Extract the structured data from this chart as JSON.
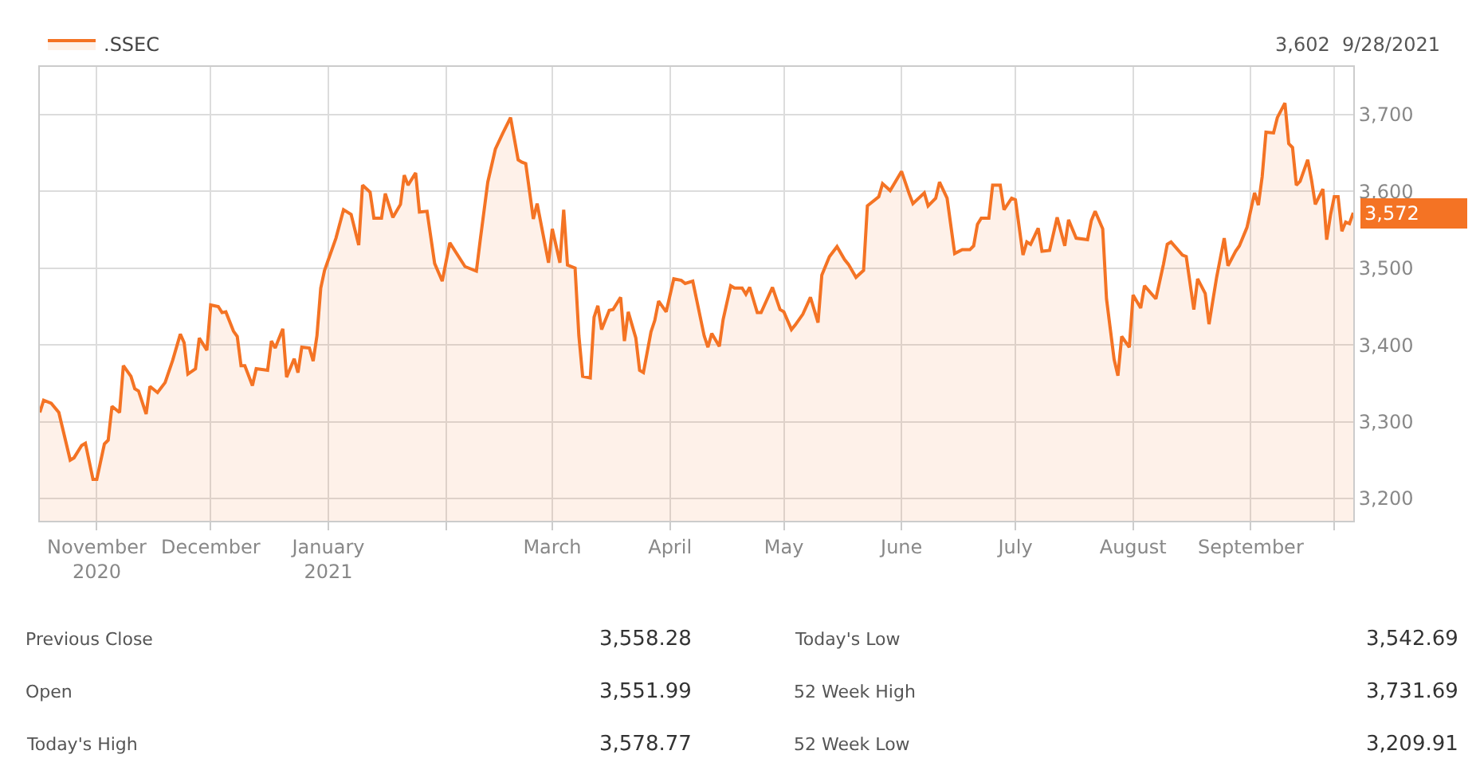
{
  "chart_data": {
    "type": "area",
    "legend": "top left",
    "grid": true,
    "marker": "none",
    "line_style": "solid",
    "x": [
      "2020-10-17",
      "2020-10-18",
      "2020-10-20",
      "2020-10-22",
      "2020-10-25",
      "2020-10-26",
      "2020-10-28",
      "2020-10-29",
      "2020-10-31",
      "2020-11-01",
      "2020-11-03",
      "2020-11-04",
      "2020-11-05",
      "2020-11-07",
      "2020-11-08",
      "2020-11-10",
      "2020-11-11",
      "2020-11-12",
      "2020-11-14",
      "2020-11-15",
      "2020-11-17",
      "2020-11-19",
      "2020-11-21",
      "2020-11-23",
      "2020-11-24",
      "2020-11-25",
      "2020-11-27",
      "2020-11-28",
      "2020-11-30",
      "2020-12-01",
      "2020-12-03",
      "2020-12-04",
      "2020-12-05",
      "2020-12-07",
      "2020-12-08",
      "2020-12-09",
      "2020-12-10",
      "2020-12-12",
      "2020-12-13",
      "2020-12-16",
      "2020-12-17",
      "2020-12-18",
      "2020-12-20",
      "2020-12-21",
      "2020-12-23",
      "2020-12-24",
      "2020-12-25",
      "2020-12-27",
      "2020-12-28",
      "2020-12-29",
      "2020-12-30",
      "2020-12-31",
      "2021-01-03",
      "2021-01-05",
      "2021-01-07",
      "2021-01-09",
      "2021-01-10",
      "2021-01-12",
      "2021-01-13",
      "2021-01-15",
      "2021-01-16",
      "2021-01-18",
      "2021-01-20",
      "2021-01-21",
      "2021-01-22",
      "2021-01-24",
      "2021-01-25",
      "2021-01-27",
      "2021-01-29",
      "2021-01-31",
      "2021-02-02",
      "2021-02-06",
      "2021-02-09",
      "2021-02-10",
      "2021-02-12",
      "2021-02-14",
      "2021-02-16",
      "2021-02-18",
      "2021-02-20",
      "2021-02-21",
      "2021-02-22",
      "2021-02-24",
      "2021-02-25",
      "2021-02-28",
      "2021-03-01",
      "2021-03-03",
      "2021-03-04",
      "2021-03-05",
      "2021-03-07",
      "2021-03-08",
      "2021-03-09",
      "2021-03-11",
      "2021-03-12",
      "2021-03-13",
      "2021-03-14",
      "2021-03-16",
      "2021-03-17",
      "2021-03-19",
      "2021-03-20",
      "2021-03-21",
      "2021-03-23",
      "2021-03-24",
      "2021-03-25",
      "2021-03-27",
      "2021-03-28",
      "2021-03-29",
      "2021-03-31",
      "2021-04-02",
      "2021-04-04",
      "2021-04-05",
      "2021-04-07",
      "2021-04-10",
      "2021-04-11",
      "2021-04-12",
      "2021-04-14",
      "2021-04-15",
      "2021-04-17",
      "2021-04-18",
      "2021-04-20",
      "2021-04-21",
      "2021-04-22",
      "2021-04-24",
      "2021-04-25",
      "2021-04-28",
      "2021-04-30",
      "2021-05-01",
      "2021-05-03",
      "2021-05-04",
      "2021-05-06",
      "2021-05-08",
      "2021-05-10",
      "2021-05-11",
      "2021-05-13",
      "2021-05-15",
      "2021-05-17",
      "2021-05-18",
      "2021-05-20",
      "2021-05-22",
      "2021-05-23",
      "2021-05-26",
      "2021-05-27",
      "2021-05-29",
      "2021-06-01",
      "2021-06-03",
      "2021-06-04",
      "2021-06-07",
      "2021-06-08",
      "2021-06-10",
      "2021-06-11",
      "2021-06-13",
      "2021-06-15",
      "2021-06-17",
      "2021-06-19",
      "2021-06-20",
      "2021-06-21",
      "2021-06-22",
      "2021-06-24",
      "2021-06-25",
      "2021-06-27",
      "2021-06-28",
      "2021-06-30",
      "2021-07-01",
      "2021-07-03",
      "2021-07-04",
      "2021-07-05",
      "2021-07-07",
      "2021-07-08",
      "2021-07-10",
      "2021-07-12",
      "2021-07-14",
      "2021-07-15",
      "2021-07-17",
      "2021-07-20",
      "2021-07-21",
      "2021-07-22",
      "2021-07-24",
      "2021-07-25",
      "2021-07-27",
      "2021-07-28",
      "2021-07-29",
      "2021-07-31",
      "2021-08-01",
      "2021-08-03",
      "2021-08-04",
      "2021-08-07",
      "2021-08-09",
      "2021-08-10",
      "2021-08-11",
      "2021-08-14",
      "2021-08-15",
      "2021-08-17",
      "2021-08-18",
      "2021-08-20",
      "2021-08-21",
      "2021-08-23",
      "2021-08-25",
      "2021-08-26",
      "2021-08-28",
      "2021-08-29",
      "2021-08-31",
      "2021-09-02",
      "2021-09-03",
      "2021-09-04",
      "2021-09-05",
      "2021-09-07",
      "2021-09-08",
      "2021-09-10",
      "2021-09-11",
      "2021-09-12",
      "2021-09-13",
      "2021-09-14",
      "2021-09-16",
      "2021-09-17",
      "2021-09-18",
      "2021-09-20",
      "2021-09-21",
      "2021-09-22",
      "2021-09-23",
      "2021-09-24",
      "2021-09-25",
      "2021-09-26",
      "2021-09-27",
      "2021-09-28"
    ],
    "series": [
      {
        "name": ".SSEC",
        "color": "#f47324",
        "values": [
          3312,
          3328,
          3324,
          3312,
          3250,
          3253,
          3269,
          3272,
          3225,
          3225,
          3271,
          3276,
          3320,
          3312,
          3373,
          3359,
          3343,
          3340,
          3310,
          3346,
          3338,
          3351,
          3380,
          3414,
          3403,
          3362,
          3369,
          3409,
          3393,
          3452,
          3450,
          3442,
          3443,
          3418,
          3411,
          3373,
          3373,
          3347,
          3369,
          3367,
          3405,
          3396,
          3421,
          3358,
          3382,
          3364,
          3397,
          3396,
          3379,
          3412,
          3474,
          3497,
          3539,
          3576,
          3570,
          3530,
          3608,
          3599,
          3565,
          3565,
          3597,
          3566,
          3583,
          3621,
          3608,
          3624,
          3573,
          3574,
          3506,
          3483,
          3533,
          3502,
          3496,
          3536,
          3612,
          3655,
          3676,
          3696,
          3641,
          3638,
          3636,
          3564,
          3584,
          3507,
          3551,
          3507,
          3576,
          3504,
          3500,
          3412,
          3359,
          3357,
          3436,
          3451,
          3420,
          3445,
          3446,
          3462,
          3405,
          3443,
          3409,
          3367,
          3364,
          3417,
          3432,
          3457,
          3443,
          3486,
          3484,
          3480,
          3483,
          3412,
          3397,
          3415,
          3398,
          3433,
          3477,
          3474,
          3474,
          3466,
          3475,
          3442,
          3442,
          3475,
          3446,
          3443,
          3420,
          3426,
          3440,
          3462,
          3429,
          3491,
          3515,
          3528,
          3511,
          3505,
          3488,
          3497,
          3581,
          3593,
          3610,
          3601,
          3626,
          3597,
          3584,
          3598,
          3581,
          3591,
          3612,
          3591,
          3519,
          3524,
          3524,
          3529,
          3557,
          3565,
          3565,
          3608,
          3608,
          3576,
          3591,
          3589,
          3517,
          3534,
          3531,
          3552,
          3522,
          3523,
          3566,
          3529,
          3563,
          3539,
          3537,
          3562,
          3574,
          3551,
          3460,
          3381,
          3360,
          3411,
          3397,
          3465,
          3448,
          3477,
          3460,
          3505,
          3531,
          3534,
          3517,
          3515,
          3446,
          3486,
          3467,
          3427,
          3488,
          3539,
          3503,
          3522,
          3529,
          3553,
          3598,
          3582,
          3619,
          3677,
          3676,
          3696,
          3715,
          3662,
          3657,
          3608,
          3613,
          3641,
          3615,
          3583,
          3603,
          3537,
          3569,
          3593,
          3593,
          3548,
          3560,
          3558,
          3572
        ]
      }
    ],
    "xlim": [
      "2020-10-17",
      "2021-09-28"
    ],
    "xticks": [
      {
        "value": "2020-11-01",
        "label": "November\n2020"
      },
      {
        "value": "2020-12-01",
        "label": "December"
      },
      {
        "value": "2021-01-01",
        "label": "January\n2021"
      },
      {
        "value": "2021-02-01",
        "label": null
      },
      {
        "value": "2021-03-01",
        "label": "March"
      },
      {
        "value": "2021-04-01",
        "label": "April"
      },
      {
        "value": "2021-05-01",
        "label": "May"
      },
      {
        "value": "2021-06-01",
        "label": "June"
      },
      {
        "value": "2021-07-01",
        "label": "July"
      },
      {
        "value": "2021-08-01",
        "label": "August"
      },
      {
        "value": "2021-09-01",
        "label": "September"
      },
      {
        "value": "2021-09-23",
        "label": null
      }
    ],
    "ylim": [
      3171,
      3762
    ],
    "yticks": [
      {
        "value": 3200,
        "label": "3,200"
      },
      {
        "value": 3300,
        "label": "3,300"
      },
      {
        "value": 3400,
        "label": "3,400"
      },
      {
        "value": 3500,
        "label": "3,500"
      },
      {
        "value": 3600,
        "label": "3,600"
      },
      {
        "value": 3700,
        "label": "3,700"
      }
    ],
    "annotations": [
      "3,602  9/28/2021",
      {
        "text": "3,572",
        "x": "2021-09-28",
        "y": 3572
      },
      "Previous Close",
      "3,558.28",
      "Today's Low",
      "3,542.69",
      "Open",
      "3,551.99",
      "52 Week High",
      "3,731.69",
      "Today's High",
      "3,578.77",
      "52 Week Low",
      "3,209.91"
    ]
  }
}
